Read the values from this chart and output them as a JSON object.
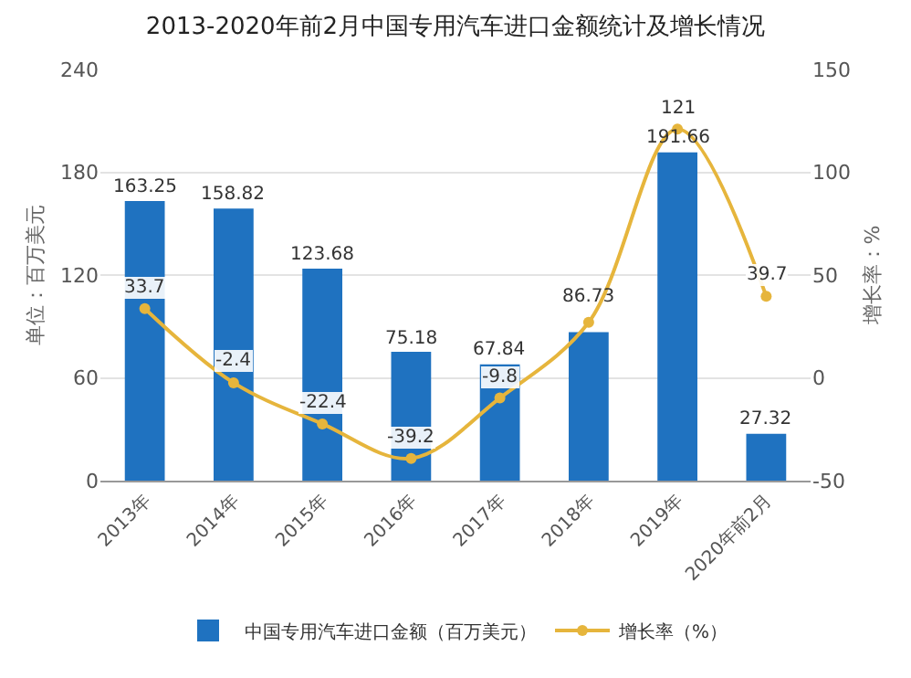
{
  "chart_data": {
    "type": "bar",
    "title": "2013-2020年前2月中国专用汽车进口金额统计及增长情况",
    "categories": [
      "2013年",
      "2014年",
      "2015年",
      "2016年",
      "2017年",
      "2018年",
      "2019年",
      "2020年前2月"
    ],
    "series": [
      {
        "name": "中国专用汽车进口金额（百万美元）",
        "color": "#1f72c0",
        "values": [
          163.25,
          158.82,
          123.68,
          75.18,
          67.84,
          86.73,
          191.66,
          27.32
        ],
        "value_labels": [
          "163.25",
          "158.82",
          "123.68",
          "75.18",
          "67.84",
          "86.73",
          "191.66",
          "27.32"
        ]
      },
      {
        "name": "增长率（%）",
        "type": "line",
        "axis": "y2",
        "color": "#e6b53c",
        "values": [
          33.7,
          -2.4,
          -22.4,
          -39.2,
          -9.8,
          27,
          121,
          39.7
        ],
        "value_labels": [
          "33.7",
          "-2.4",
          "-22.4",
          "-39.2",
          "-9.8",
          null,
          "121",
          "39.7"
        ]
      }
    ],
    "ylabel": "单位：百万美元",
    "y2label": "增长率：%",
    "ylim": [
      0,
      240
    ],
    "yticks": [
      0,
      60,
      120,
      180,
      240
    ],
    "y2lim": [
      -50,
      150
    ],
    "y2ticks": [
      -50,
      0,
      50,
      100,
      150
    ],
    "grid": "y",
    "legend": "bottom",
    "marker": "circle"
  }
}
